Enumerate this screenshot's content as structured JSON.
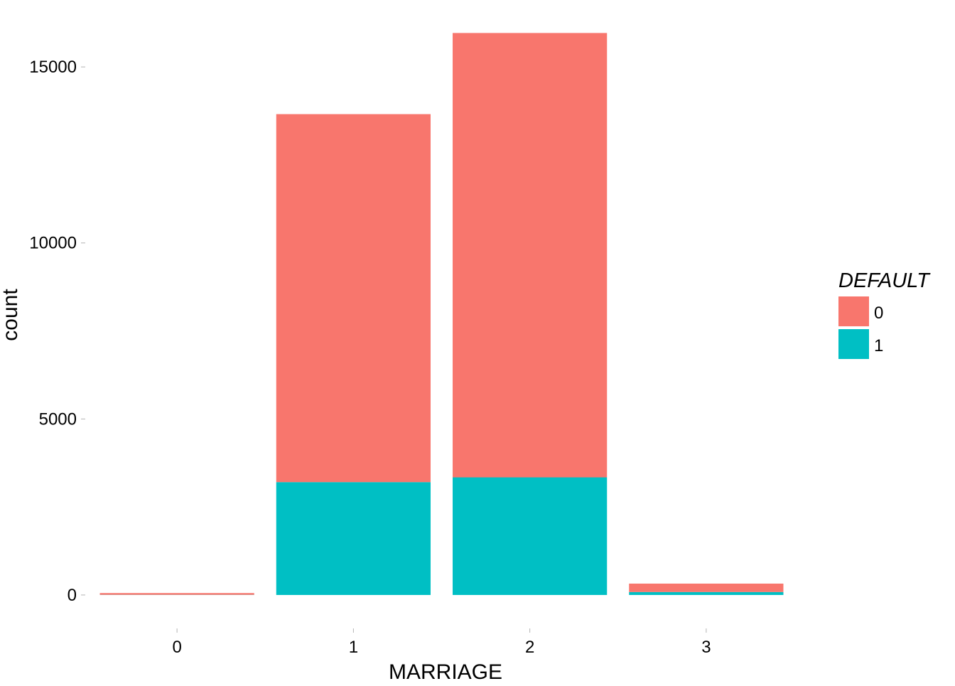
{
  "chart_data": {
    "type": "bar",
    "stacked": true,
    "categories": [
      "0",
      "1",
      "2",
      "3"
    ],
    "series": [
      {
        "name": "0",
        "color": "#F8766D",
        "values": [
          49,
          10453,
          12623,
          239
        ]
      },
      {
        "name": "1",
        "color": "#00BFC4",
        "values": [
          5,
          3206,
          3341,
          84
        ]
      }
    ],
    "xlabel": "MARRIAGE",
    "ylabel": "count",
    "ylim": [
      -950,
      16800
    ],
    "yticks": [
      0,
      5000,
      10000,
      15000
    ],
    "ytick_labels": [
      "0",
      "5000",
      "10000",
      "15000"
    ],
    "grid": false,
    "legend": {
      "title": "DEFAULT",
      "position": "right",
      "entries": [
        {
          "label": "0",
          "color": "#F8766D"
        },
        {
          "label": "1",
          "color": "#00BFC4"
        }
      ]
    }
  }
}
